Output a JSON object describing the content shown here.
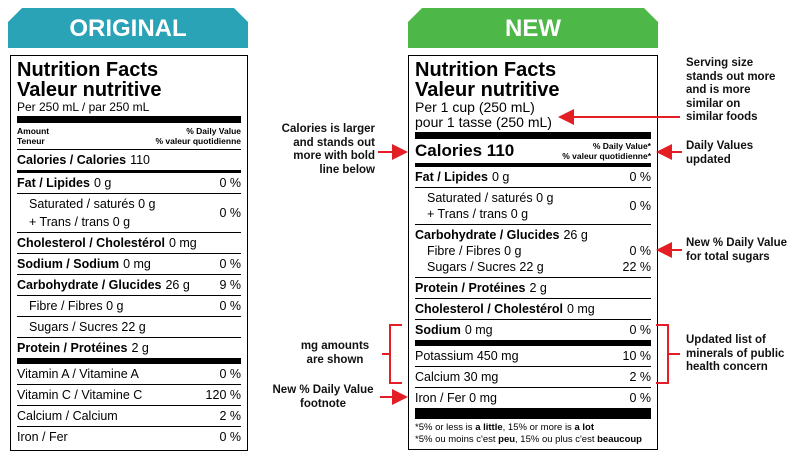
{
  "original": {
    "banner": "ORIGINAL",
    "title": [
      "Nutrition Facts",
      "Valeur nutritive"
    ],
    "serving": [
      "Per 250 mL  / par 250 mL"
    ],
    "header_left": [
      "Amount",
      "Teneur"
    ],
    "header_right": [
      "% Daily Value",
      "% valeur quotidienne"
    ],
    "rows": [
      {
        "lines": [
          {
            "bold": "Calories / Calories",
            "text": "110"
          }
        ]
      },
      {
        "lines": [
          {
            "bold": "Fat / Lipides",
            "text": "0 g"
          }
        ],
        "dv": "0 %"
      },
      {
        "lines": [
          {
            "text": "Saturated / saturés 0 g",
            "indent": true
          },
          {
            "text": "+ Trans / trans 0 g",
            "indent": true
          }
        ],
        "dv": "0 %"
      },
      {
        "lines": [
          {
            "bold": "Cholesterol / Cholestérol",
            "text": "0 mg"
          }
        ]
      },
      {
        "lines": [
          {
            "bold": "Sodium / Sodium",
            "text": "0 mg"
          }
        ],
        "dv": "0 %"
      },
      {
        "lines": [
          {
            "bold": "Carbohydrate / Glucides",
            "text": "26 g"
          }
        ],
        "dv": "9 %"
      },
      {
        "lines": [
          {
            "text": "Fibre / Fibres 0 g",
            "indent": true
          }
        ],
        "dv": "0 %"
      },
      {
        "lines": [
          {
            "text": "Sugars / Sucres 22 g",
            "indent": true
          }
        ]
      },
      {
        "lines": [
          {
            "bold": "Protein / Protéines",
            "text": "2 g"
          }
        ]
      },
      {
        "lines": [
          {
            "text": "Vitamin A / Vitamine A"
          }
        ],
        "dv": "0 %"
      },
      {
        "lines": [
          {
            "text": "Vitamin C / Vitamine C"
          }
        ],
        "dv": "120 %"
      },
      {
        "lines": [
          {
            "text": "Calcium / Calcium"
          }
        ],
        "dv": "2 %"
      },
      {
        "lines": [
          {
            "text": "Iron / Fer"
          }
        ],
        "dv": "0 %"
      }
    ]
  },
  "new": {
    "banner": "NEW",
    "title": [
      "Nutrition Facts",
      "Valeur nutritive"
    ],
    "serving": [
      "Per 1 cup (250 mL)",
      "pour 1 tasse (250 mL)"
    ],
    "calories": "Calories 110",
    "header_right": [
      "% Daily Value*",
      "% valeur quotidienne*"
    ],
    "rows": [
      {
        "lines": [
          {
            "bold": "Fat / Lipides",
            "text": "0 g"
          }
        ],
        "dv": "0 %"
      },
      {
        "lines": [
          {
            "text": "Saturated / saturés 0 g",
            "indent": true
          },
          {
            "text": "+ Trans / trans 0 g",
            "indent": true
          }
        ],
        "dv": "0 %"
      },
      {
        "lines": [
          {
            "bold": "Carbohydrate / Glucides",
            "text": "26 g"
          },
          {
            "text": "Fibre / Fibres 0 g",
            "indent": true,
            "dv": "0 %"
          },
          {
            "text": "Sugars / Sucres 22 g",
            "indent": true,
            "dv": "22 %"
          }
        ]
      },
      {
        "lines": [
          {
            "bold": "Protein / Protéines",
            "text": "2 g"
          }
        ]
      },
      {
        "lines": [
          {
            "bold": "Cholesterol / Cholestérol",
            "text": "0 mg"
          }
        ]
      },
      {
        "lines": [
          {
            "bold": "Sodium",
            "text": "0 mg"
          }
        ],
        "dv": "0 %"
      },
      {
        "lines": [
          {
            "text": "Potassium 450 mg"
          }
        ],
        "dv": "10 %"
      },
      {
        "lines": [
          {
            "text": "Calcium 30 mg"
          }
        ],
        "dv": "2 %"
      },
      {
        "lines": [
          {
            "text": "Iron / Fer 0 mg"
          }
        ],
        "dv": "0 %"
      }
    ],
    "footnote": [
      [
        {
          "text": "*5% or less is "
        },
        {
          "bold": "a little"
        },
        {
          "text": ", 15% or more is "
        },
        {
          "bold": "a lot"
        }
      ],
      [
        {
          "text": "*5% ou moins c'est "
        },
        {
          "bold": "peu"
        },
        {
          "text": ", 15% ou plus c'est "
        },
        {
          "bold": "beaucoup"
        }
      ]
    ]
  },
  "annotations": {
    "calories": [
      "Calories is larger",
      "and stands out",
      "more with bold",
      "line below"
    ],
    "mg": [
      "mg amounts",
      "are shown"
    ],
    "footnote": [
      "New % Daily Value",
      "footnote"
    ],
    "serving": [
      "Serving size",
      "stands out more",
      "and is more",
      "similar on",
      "similar foods"
    ],
    "daily_values": [
      "Daily Values",
      "updated"
    ],
    "sugars": [
      "New % Daily Value",
      "for total sugars"
    ],
    "minerals": [
      "Updated list of",
      "minerals of public",
      "health concern"
    ]
  }
}
